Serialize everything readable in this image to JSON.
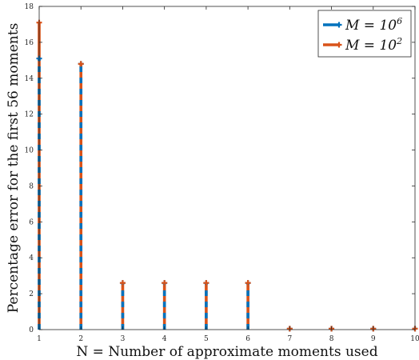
{
  "chart_data": {
    "type": "line",
    "title": "",
    "xlabel": "N = Number of approximate moments used",
    "ylabel": "Percentage error for the first 56 moments",
    "xlim": [
      1,
      10
    ],
    "ylim": [
      0,
      18
    ],
    "x_ticks": [
      "1",
      "2",
      "3",
      "4",
      "5",
      "6",
      "7",
      "8",
      "9",
      "10"
    ],
    "y_ticks": [
      "0",
      "2",
      "4",
      "6",
      "8",
      "10",
      "12",
      "14",
      "16",
      "18"
    ],
    "grid": false,
    "legend_position": "top-right",
    "style": "stem",
    "series": [
      {
        "name_math": {
          "base": "M = 10",
          "exp": "6"
        },
        "color": "#0072BD",
        "x": [
          1,
          2,
          3,
          4,
          5,
          6,
          7,
          8,
          9,
          10
        ],
        "values": [
          15.1,
          14.8,
          2.6,
          2.6,
          2.6,
          2.6,
          0.05,
          0.05,
          0.05,
          0.05
        ]
      },
      {
        "name_math": {
          "base": "M = 10",
          "exp": "2"
        },
        "color": "#D95319",
        "x": [
          1,
          2,
          3,
          4,
          5,
          6,
          7,
          8,
          9,
          10
        ],
        "values": [
          17.1,
          14.8,
          2.6,
          2.6,
          2.6,
          2.6,
          0.05,
          0.05,
          0.05,
          0.05
        ]
      }
    ]
  }
}
